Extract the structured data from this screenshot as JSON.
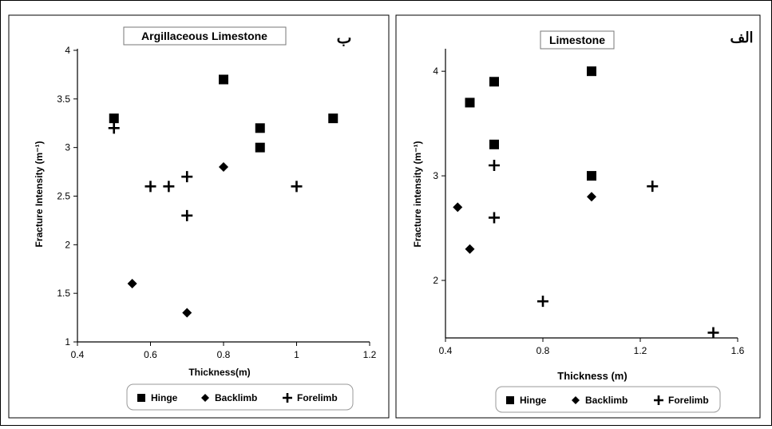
{
  "chart_data": [
    {
      "type": "scatter",
      "title": "Argillaceous Limestone",
      "panel_letter": "ب",
      "xlabel": "Thickness(m)",
      "ylabel": "Fracture Intensity (m⁻¹)",
      "xlim": [
        0.4,
        1.2
      ],
      "ylim": [
        1,
        4
      ],
      "xticks": [
        "0.4",
        "0.6",
        "0.8",
        "1",
        "1.2"
      ],
      "yticks": [
        "1",
        "1.5",
        "2",
        "2.5",
        "3",
        "3.5",
        "4"
      ],
      "grid": false,
      "legend_position": "bottom",
      "series": [
        {
          "name": "Hinge",
          "marker": "square",
          "x": [
            0.5,
            0.8,
            0.9,
            0.9,
            1.1
          ],
          "y": [
            3.3,
            3.7,
            3.2,
            3.0,
            3.3
          ]
        },
        {
          "name": "Backlimb",
          "marker": "diamond",
          "x": [
            0.55,
            0.7,
            0.8
          ],
          "y": [
            1.6,
            1.3,
            2.8
          ]
        },
        {
          "name": "Forelimb",
          "marker": "plus",
          "x": [
            0.5,
            0.6,
            0.65,
            0.7,
            0.7,
            1.0
          ],
          "y": [
            3.2,
            2.6,
            2.6,
            2.7,
            2.3,
            2.6
          ]
        }
      ]
    },
    {
      "type": "scatter",
      "title": "Limestone",
      "panel_letter": "الف",
      "xlabel": "Thickness (m)",
      "ylabel": "Fracture intensity (m⁻¹)",
      "xlim": [
        0.4,
        1.6
      ],
      "ylim": [
        1.45,
        4.2
      ],
      "xticks": [
        "0.4",
        "0.8",
        "1.2",
        "1.6"
      ],
      "yticks": [
        "2",
        "3",
        "4"
      ],
      "grid": false,
      "legend_position": "bottom",
      "series": [
        {
          "name": "Hinge",
          "marker": "square",
          "x": [
            0.5,
            0.6,
            0.6,
            1.0,
            1.0
          ],
          "y": [
            3.7,
            3.9,
            3.3,
            4.0,
            3.0
          ]
        },
        {
          "name": "Backlimb",
          "marker": "diamond",
          "x": [
            0.45,
            0.5,
            1.0
          ],
          "y": [
            2.7,
            2.3,
            2.8
          ]
        },
        {
          "name": "Forelimb",
          "marker": "plus",
          "x": [
            0.6,
            0.6,
            0.8,
            1.25,
            1.5
          ],
          "y": [
            3.1,
            2.6,
            1.8,
            2.9,
            1.5
          ]
        }
      ]
    }
  ]
}
